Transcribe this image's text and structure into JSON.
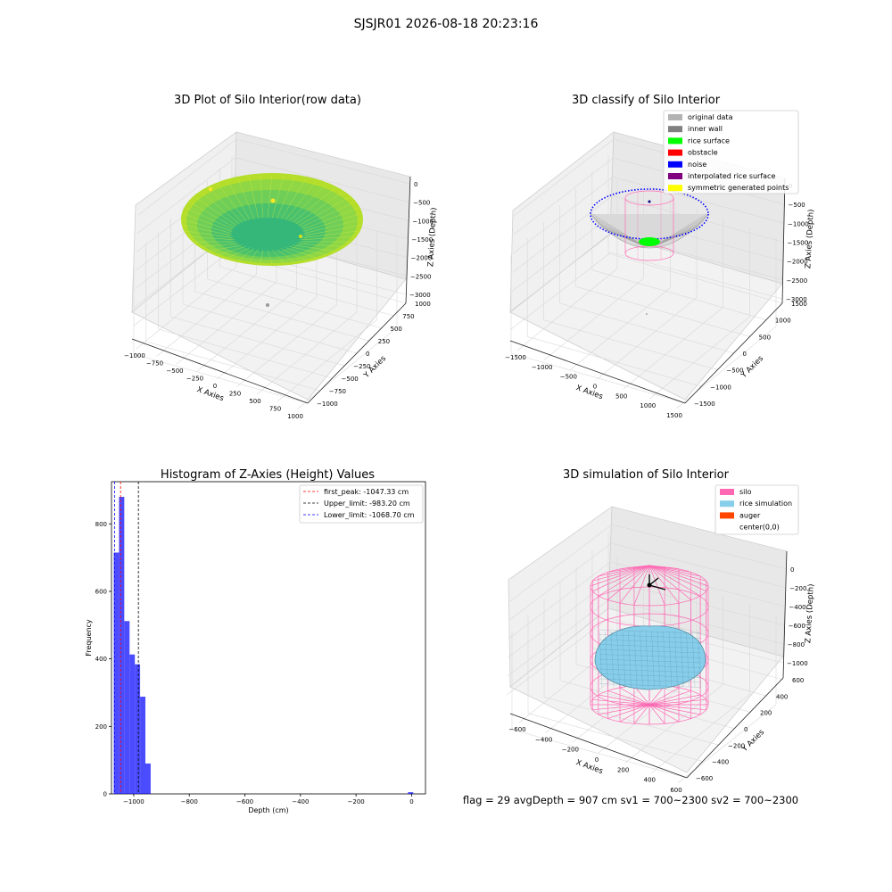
{
  "suptitle": "SJSJR01 2026-08-18 20:23:16",
  "footer": "flag = 29  avgDepth = 907 cm  sv1 = 700~2300  sv2 = 700~2300",
  "chart_data": [
    {
      "type": "scatter3d",
      "title": "3D Plot of Silo Interior(row data)",
      "xlabel": "X Axies",
      "ylabel": "Y Axies",
      "zlabel": "Z Axies (Depth)",
      "xticks": [
        "−1000",
        "−750",
        "−500",
        "−250",
        "0",
        "250",
        "500",
        "750",
        "1000"
      ],
      "yticks": [
        "−1000",
        "−750",
        "−500",
        "−250",
        "0",
        "250",
        "500",
        "750",
        "1000"
      ],
      "zticks": [
        "0",
        "−500",
        "−1000",
        "−1500",
        "−2000",
        "−2500",
        "−3000"
      ],
      "xlim": [
        -1000,
        1000
      ],
      "ylim": [
        -1000,
        1000
      ],
      "zlim": [
        -3000,
        0
      ],
      "colormap": [
        "#b5de2b",
        "#6ece58",
        "#35b779",
        "#1f9e89"
      ]
    },
    {
      "type": "scatter3d",
      "title": "3D classify of Silo Interior",
      "xlabel": "X Axies",
      "ylabel": "Y Axies",
      "zlabel": "Z Axies (Depth)",
      "xticks": [
        "−1500",
        "−1000",
        "−500",
        "0",
        "500",
        "1000",
        "1500"
      ],
      "yticks": [
        "−1500",
        "−1000",
        "−500",
        "0",
        "500",
        "1000",
        "1500"
      ],
      "zticks": [
        "0",
        "−500",
        "−1000",
        "−1500",
        "−2000",
        "−2500",
        "−3000"
      ],
      "xlim": [
        -1500,
        1500
      ],
      "ylim": [
        -1500,
        1500
      ],
      "zlim": [
        -3000,
        0
      ],
      "legend": [
        {
          "label": "original data",
          "color": "#b3b3b3"
        },
        {
          "label": "inner wall",
          "color": "#808080"
        },
        {
          "label": "rice surface",
          "color": "#00ff00"
        },
        {
          "label": "obstacle",
          "color": "#ff0000"
        },
        {
          "label": "noise",
          "color": "#0000ff"
        },
        {
          "label": "interpolated rice surface",
          "color": "#800080"
        },
        {
          "label": "symmetric generated points",
          "color": "#ffff00"
        }
      ],
      "legend_loc": "upper right"
    },
    {
      "type": "bar",
      "title": "Histogram of Z-Axies (Height) Values",
      "xlabel": "Depth (cm)",
      "ylabel": "Frequency",
      "xlim": [
        -1080,
        50
      ],
      "ylim": [
        0,
        925
      ],
      "xticks": [
        -1000,
        -800,
        -600,
        -400,
        -200,
        0
      ],
      "xticklabels": [
        "−1000",
        "−800",
        "−600",
        "−400",
        "−200",
        "0"
      ],
      "yticks": [
        0,
        200,
        400,
        600,
        800
      ],
      "bar_color": "#0000ff",
      "bins": [
        {
          "x0": -1072,
          "x1": -1053,
          "value": 715
        },
        {
          "x0": -1053,
          "x1": -1034,
          "value": 880
        },
        {
          "x0": -1034,
          "x1": -1015,
          "value": 512
        },
        {
          "x0": -1015,
          "x1": -996,
          "value": 413
        },
        {
          "x0": -996,
          "x1": -977,
          "value": 384
        },
        {
          "x0": -977,
          "x1": -958,
          "value": 288
        },
        {
          "x0": -958,
          "x1": -939,
          "value": 90
        },
        {
          "x0": -13,
          "x1": 6,
          "value": 5
        }
      ],
      "lines": [
        {
          "label": "first_peak: -1047.33 cm",
          "value": -1047.33,
          "color": "#ff0000"
        },
        {
          "label": "Upper_limit: -983.20 cm",
          "value": -983.2,
          "color": "#000000"
        },
        {
          "label": "Lower_limit: -1068.70 cm",
          "value": -1068.7,
          "color": "#0000ff"
        }
      ],
      "legend_loc": "upper right"
    },
    {
      "type": "surface3d",
      "title": "3D simulation of Silo Interior",
      "xlabel": "X Axies",
      "ylabel": "Y Axies",
      "zlabel": "Z Axies (Depth)",
      "xticks": [
        "−600",
        "−400",
        "−200",
        "0",
        "200",
        "400",
        "600"
      ],
      "yticks": [
        "−600",
        "−400",
        "−200",
        "0",
        "200",
        "400",
        "600"
      ],
      "zticks": [
        "0",
        "−200",
        "−400",
        "−600",
        "−800",
        "−1000"
      ],
      "xlim": [
        -600,
        600
      ],
      "ylim": [
        -600,
        600
      ],
      "zlim": [
        -1100,
        0
      ],
      "legend": [
        {
          "label": "silo",
          "color": "#ff69b4"
        },
        {
          "label": "rice simulation",
          "color": "#87ceeb"
        },
        {
          "label": "auger",
          "color": "#ff4500"
        },
        {
          "label": "center(0,0)",
          "color": "#ffffff"
        }
      ],
      "legend_loc": "upper right"
    }
  ]
}
